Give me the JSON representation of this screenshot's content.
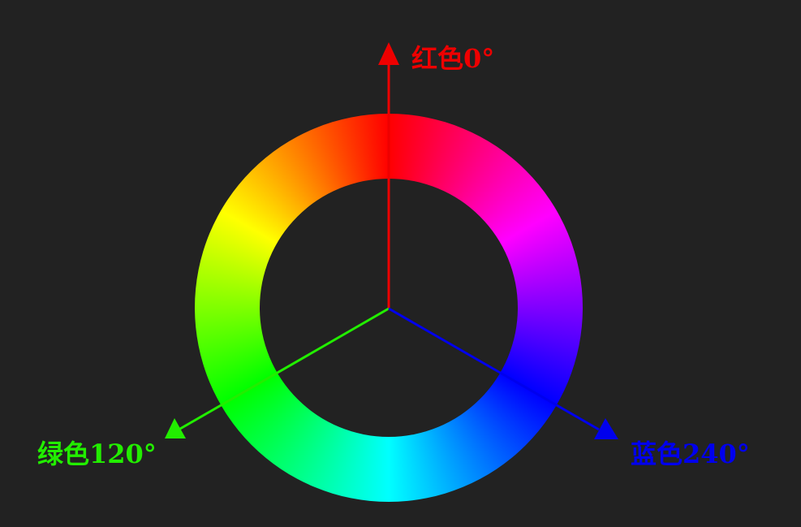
{
  "labels": {
    "red": "红色0°",
    "green": "绿色120°",
    "blue": "蓝色240°"
  },
  "colors": {
    "background": "#222222",
    "red": "#ee0000",
    "green": "#22ee00",
    "blue": "#0000ee"
  },
  "icons": {
    "red_arrow": "arrow-up-icon",
    "green_arrow": "arrow-down-left-icon",
    "blue_arrow": "arrow-down-right-icon"
  }
}
